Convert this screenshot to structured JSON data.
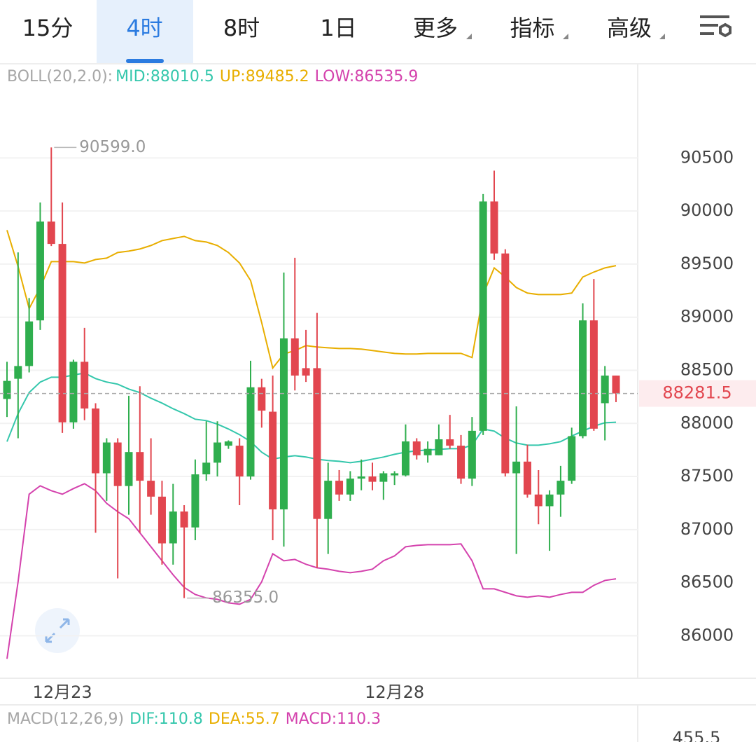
{
  "tabs": [
    "15分",
    "4时",
    "8时",
    "1日",
    "更多",
    "指标",
    "高级"
  ],
  "selected_tab": 1,
  "chart_data": {
    "type": "candlestick",
    "indicator": "BOLL(20,2.0):",
    "categories": [
      null,
      null,
      null,
      null,
      null,
      "12月23",
      null,
      null,
      null,
      null,
      null,
      null,
      null,
      null,
      null,
      null,
      null,
      null,
      null,
      null,
      null,
      null,
      null,
      null,
      null,
      null,
      null,
      null,
      null,
      null,
      null,
      null,
      null,
      null,
      null,
      "12月28",
      null,
      null,
      null,
      null,
      null,
      null,
      null,
      null,
      null,
      null,
      null,
      null,
      null,
      null,
      null,
      null,
      null,
      null,
      null,
      null
    ],
    "open": [
      88230,
      88420,
      88540,
      88970,
      89900,
      89690,
      88010,
      88580,
      88140,
      87530,
      87820,
      87410,
      87730,
      87460,
      87310,
      86870,
      87170,
      87020,
      87520,
      87630,
      87790,
      87790,
      87500,
      88340,
      88110,
      87190,
      88800,
      88520,
      88520,
      87100,
      87460,
      87330,
      87480,
      87500,
      87450,
      87510,
      87510,
      87830,
      87700,
      87700,
      87850,
      87790,
      87480,
      87930,
      90090,
      89600,
      87530,
      87640,
      87330,
      87220,
      87330,
      87460,
      87880,
      88970,
      88190,
      88450
    ],
    "high": [
      88580,
      89610,
      89180,
      90080,
      90599,
      90080,
      88600,
      88900,
      88190,
      87860,
      87860,
      88260,
      88350,
      87860,
      87460,
      87430,
      87230,
      87660,
      88020,
      88020,
      87840,
      87860,
      88590,
      88420,
      88450,
      89420,
      89560,
      88880,
      89040,
      87630,
      87560,
      87550,
      87660,
      87630,
      87550,
      87550,
      87990,
      87860,
      87830,
      87990,
      88080,
      87890,
      88060,
      90160,
      90380,
      89640,
      88160,
      87800,
      87560,
      87370,
      87600,
      87960,
      89130,
      89360,
      88540,
      88450
    ],
    "low": [
      88060,
      87860,
      88480,
      88880,
      89670,
      87910,
      87950,
      88030,
      86970,
      87270,
      86540,
      87140,
      86970,
      87140,
      86670,
      86670,
      86355,
      86900,
      87460,
      87500,
      87760,
      87230,
      87470,
      87960,
      86900,
      86840,
      88310,
      88390,
      86640,
      86770,
      87270,
      87270,
      87370,
      87370,
      87280,
      87420,
      87500,
      87660,
      87630,
      87700,
      87760,
      87430,
      87410,
      87890,
      89540,
      87500,
      86770,
      87300,
      87050,
      86800,
      87120,
      87430,
      87860,
      87930,
      87840,
      88200
    ],
    "close": [
      88400,
      88540,
      88960,
      89900,
      89690,
      88010,
      88580,
      88140,
      87530,
      87820,
      87410,
      87730,
      87460,
      87310,
      86870,
      87170,
      87020,
      87520,
      87630,
      87820,
      87830,
      87500,
      88340,
      88120,
      87190,
      88800,
      88450,
      88450,
      87100,
      87460,
      87330,
      87480,
      87500,
      87450,
      87530,
      87530,
      87830,
      87700,
      87760,
      87850,
      87790,
      87480,
      87930,
      90090,
      89600,
      87530,
      87640,
      87330,
      87220,
      87330,
      87460,
      87880,
      88970,
      87950,
      88450,
      88281.5
    ],
    "up_color": "#2fae4e",
    "down_color": "#e2464f",
    "series": [
      {
        "label": "MID:88010.5",
        "color": "#34c7ac",
        "values": [
          87828,
          88092,
          88290,
          88389,
          88435,
          88435,
          88455,
          88474,
          88422,
          88389,
          88369,
          88323,
          88290,
          88237,
          88191,
          88138,
          88092,
          88039,
          88026,
          87993,
          87947,
          87894,
          87828,
          87729,
          87663,
          87683,
          87696,
          87683,
          87663,
          87650,
          87643,
          87630,
          87643,
          87663,
          87683,
          87709,
          87729,
          87742,
          87749,
          87755,
          87762,
          87762,
          87795,
          87947,
          87927,
          87861,
          87815,
          87795,
          87795,
          87808,
          87828,
          87881,
          87927,
          87973,
          88006,
          88010.5
        ]
      },
      {
        "label": "UP:89485.2",
        "color": "#e8ae00",
        "values": [
          89820,
          89477,
          89081,
          89279,
          89523,
          89523,
          89523,
          89510,
          89543,
          89556,
          89609,
          89622,
          89642,
          89675,
          89721,
          89741,
          89761,
          89721,
          89708,
          89675,
          89609,
          89510,
          89345,
          88949,
          88521,
          88653,
          88686,
          88732,
          88719,
          88712,
          88705,
          88705,
          88699,
          88686,
          88672,
          88659,
          88653,
          88653,
          88659,
          88659,
          88659,
          88659,
          88620,
          89213,
          89464,
          89378,
          89279,
          89227,
          89213,
          89213,
          89213,
          89227,
          89378,
          89425,
          89464,
          89485.2
        ]
      },
      {
        "label": "LOW:86535.9",
        "color": "#d442ad",
        "values": [
          85783,
          86508,
          87333,
          87412,
          87366,
          87333,
          87386,
          87432,
          87366,
          87247,
          87168,
          87102,
          86970,
          86838,
          86706,
          86574,
          86455,
          86389,
          86356,
          86343,
          86310,
          86297,
          86343,
          86508,
          86772,
          86706,
          86719,
          86673,
          86640,
          86627,
          86607,
          86594,
          86607,
          86627,
          86706,
          86752,
          86838,
          86851,
          86858,
          86858,
          86858,
          86865,
          86706,
          86442,
          86442,
          86409,
          86376,
          86363,
          86376,
          86363,
          86389,
          86409,
          86409,
          86475,
          86521,
          86535.9
        ]
      }
    ],
    "ylim": [
      85600,
      91360
    ],
    "yticks": [
      86000,
      86500,
      87000,
      87500,
      88000,
      88500,
      89000,
      89500,
      90000,
      90500
    ],
    "grid": true,
    "annotations": [
      {
        "value": 90599,
        "label": "90599.0",
        "at": "high"
      },
      {
        "value": 86355,
        "label": "86355.0",
        "at": "low"
      }
    ],
    "last_price": 88281.5
  },
  "macd": {
    "label": "MACD(12,26,9)",
    "items": [
      {
        "text": "DIF:110.8",
        "color": "#34c7ac"
      },
      {
        "text": "DEA:55.7",
        "color": "#e8ae00"
      },
      {
        "text": "MACD:110.3",
        "color": "#d442ad"
      }
    ],
    "axis_top": 455.5
  }
}
